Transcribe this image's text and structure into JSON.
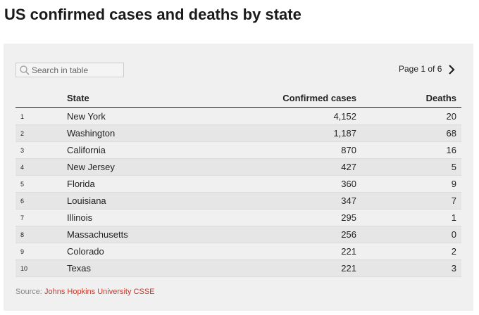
{
  "header": {
    "title": "US confirmed cases and deaths by state"
  },
  "controls": {
    "search_placeholder": "Search in table",
    "pagination": "Page 1 of 6"
  },
  "table": {
    "columns": [
      "State",
      "Confirmed cases",
      "Deaths"
    ],
    "rows": [
      [
        "1",
        "New York",
        "4,152",
        "20"
      ],
      [
        "2",
        "Washington",
        "1,187",
        "68"
      ],
      [
        "3",
        "California",
        "870",
        "16"
      ],
      [
        "4",
        "New Jersey",
        "427",
        "5"
      ],
      [
        "5",
        "Florida",
        "360",
        "9"
      ],
      [
        "6",
        "Louisiana",
        "347",
        "7"
      ],
      [
        "7",
        "Illinois",
        "295",
        "1"
      ],
      [
        "8",
        "Massachusetts",
        "256",
        "0"
      ],
      [
        "9",
        "Colorado",
        "221",
        "2"
      ],
      [
        "10",
        "Texas",
        "221",
        "3"
      ]
    ]
  },
  "footer": {
    "source_label": "Source:",
    "source_name": "Johns Hopkins University CSSE"
  }
}
